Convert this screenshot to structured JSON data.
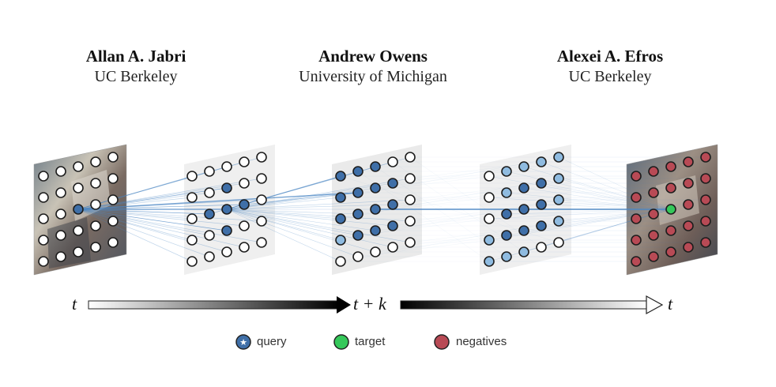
{
  "authors": [
    {
      "name": "Allan A. Jabri",
      "affiliation": "UC Berkeley"
    },
    {
      "name": "Andrew Owens",
      "affiliation": "University of Michigan"
    },
    {
      "name": "Alexei A. Efros",
      "affiliation": "UC Berkeley"
    }
  ],
  "timeline": {
    "start": "t",
    "middle": "t + k",
    "end": "t"
  },
  "legend": {
    "query": "query",
    "target": "target",
    "negatives": "negatives"
  },
  "colors": {
    "query": "#3f6fa8",
    "target": "#35c85a",
    "negative": "#b84a55",
    "light_blue": "#8fbbe0",
    "edge": "#4a86c4",
    "node_empty": "#ffffff"
  }
}
